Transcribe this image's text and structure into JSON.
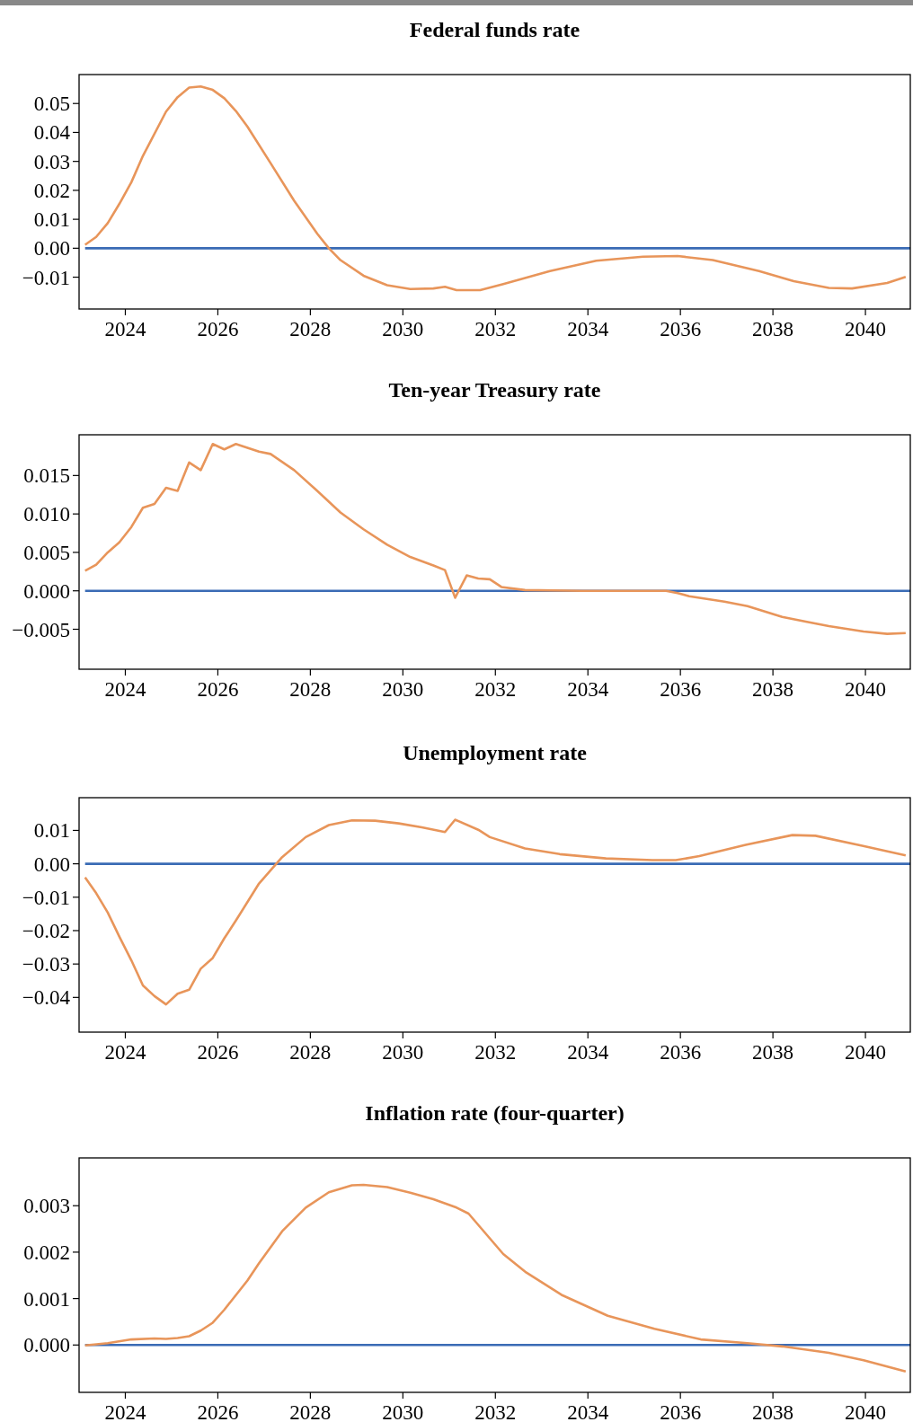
{
  "chart_data": [
    {
      "type": "line",
      "title": "Federal funds rate",
      "xlim": [
        2023,
        2040.97
      ],
      "xticks": [
        2024,
        2026,
        2028,
        2030,
        2032,
        2034,
        2036,
        2038,
        2040
      ],
      "ylim": [
        -0.021,
        0.06
      ],
      "yticks": [
        {
          "value": -0.01,
          "label": "−0.01"
        },
        {
          "value": 0,
          "label": "0.00"
        },
        {
          "value": 0.01,
          "label": "0.01"
        },
        {
          "value": 0.02,
          "label": "0.02"
        },
        {
          "value": 0.03,
          "label": "0.03"
        },
        {
          "value": 0.04,
          "label": "0.04"
        },
        {
          "value": 0.05,
          "label": "0.05"
        }
      ],
      "series": [
        {
          "color": "#3a6bb5",
          "x": [
            2023.13,
            2040.97
          ],
          "values": [
            0,
            0
          ]
        },
        {
          "color": "#e8955a",
          "x": [
            2023.13,
            2023.37,
            2023.62,
            2023.87,
            2024.13,
            2024.38,
            2024.88,
            2025.13,
            2025.38,
            2025.63,
            2025.89,
            2026.14,
            2026.39,
            2026.64,
            2027.14,
            2027.65,
            2028.15,
            2028.4,
            2028.65,
            2029.15,
            2029.66,
            2030.16,
            2030.66,
            2030.91,
            2031.16,
            2031.67,
            2032.17,
            2033.18,
            2034.18,
            2035.19,
            2035.94,
            2036.7,
            2037.7,
            2038.45,
            2039.21,
            2039.71,
            2040.47,
            2040.87
          ],
          "values": [
            0.0012,
            0.0039,
            0.0087,
            0.0153,
            0.0228,
            0.0319,
            0.0472,
            0.0522,
            0.0555,
            0.0559,
            0.0547,
            0.0518,
            0.0474,
            0.042,
            0.0294,
            0.0164,
            0.005,
            0,
            -0.0041,
            -0.0095,
            -0.0128,
            -0.0141,
            -0.0139,
            -0.0133,
            -0.0145,
            -0.0145,
            -0.0124,
            -0.0079,
            -0.0043,
            -0.0029,
            -0.0027,
            -0.0041,
            -0.0079,
            -0.0114,
            -0.0137,
            -0.0139,
            -0.012,
            -0.0099
          ]
        }
      ]
    },
    {
      "type": "line",
      "title": "Ten-year Treasury rate",
      "xlim": [
        2023,
        2040.97
      ],
      "xticks": [
        2024,
        2026,
        2028,
        2030,
        2032,
        2034,
        2036,
        2038,
        2040
      ],
      "ylim": [
        -0.0102,
        0.0203
      ],
      "yticks": [
        {
          "value": -0.005,
          "label": "−0.005"
        },
        {
          "value": 0,
          "label": "0.000"
        },
        {
          "value": 0.005,
          "label": "0.005"
        },
        {
          "value": 0.01,
          "label": "0.010"
        },
        {
          "value": 0.015,
          "label": "0.015"
        }
      ],
      "series": [
        {
          "color": "#3a6bb5",
          "x": [
            2023.13,
            2040.97
          ],
          "values": [
            0,
            0
          ]
        },
        {
          "color": "#e8955a",
          "x": [
            2023.13,
            2023.37,
            2023.62,
            2023.87,
            2024.13,
            2024.38,
            2024.63,
            2024.88,
            2025.13,
            2025.38,
            2025.63,
            2025.89,
            2026.14,
            2026.39,
            2026.89,
            2027.14,
            2027.65,
            2028.15,
            2028.65,
            2029.15,
            2029.66,
            2030.16,
            2030.66,
            2030.91,
            2031.13,
            2031.38,
            2031.63,
            2031.88,
            2032.13,
            2032.64,
            2033.87,
            2035.69,
            2035.94,
            2036.19,
            2036.95,
            2037.45,
            2038.2,
            2038.71,
            2039.21,
            2039.96,
            2040.47,
            2040.87
          ],
          "values": [
            0.0026,
            0.0034,
            0.005,
            0.0063,
            0.0083,
            0.0108,
            0.0113,
            0.0134,
            0.013,
            0.0167,
            0.0157,
            0.0191,
            0.0184,
            0.0191,
            0.0181,
            0.0178,
            0.0157,
            0.013,
            0.0102,
            0.008,
            0.006,
            0.0044,
            0.0033,
            0.0027,
            -0.0009,
            0.002,
            0.0016,
            0.0015,
            0.0005,
            0.0001,
            0,
            0,
            -0.0003,
            -0.0007,
            -0.0014,
            -0.002,
            -0.0034,
            -0.004,
            -0.0046,
            -0.0053,
            -0.0056,
            -0.0055
          ]
        }
      ]
    },
    {
      "type": "line",
      "title": "Unemployment rate",
      "xlim": [
        2023,
        2040.97
      ],
      "xticks": [
        2024,
        2026,
        2028,
        2030,
        2032,
        2034,
        2036,
        2038,
        2040
      ],
      "ylim": [
        -0.0504,
        0.0198
      ],
      "yticks": [
        {
          "value": -0.04,
          "label": "−0.04"
        },
        {
          "value": -0.03,
          "label": "−0.03"
        },
        {
          "value": -0.02,
          "label": "−0.02"
        },
        {
          "value": -0.01,
          "label": "−0.01"
        },
        {
          "value": 0,
          "label": "0.00"
        },
        {
          "value": 0.01,
          "label": "0.01"
        }
      ],
      "series": [
        {
          "color": "#3a6bb5",
          "x": [
            2023.13,
            2040.97
          ],
          "values": [
            0,
            0
          ]
        },
        {
          "color": "#e8955a",
          "x": [
            2023.13,
            2023.37,
            2023.62,
            2023.87,
            2024.13,
            2024.38,
            2024.63,
            2024.88,
            2025.13,
            2025.38,
            2025.63,
            2025.89,
            2026.14,
            2026.39,
            2026.89,
            2027.39,
            2027.9,
            2028.4,
            2028.9,
            2029.4,
            2029.91,
            2030.41,
            2030.91,
            2031.13,
            2031.63,
            2031.88,
            2032.64,
            2033.39,
            2034.39,
            2035.4,
            2035.9,
            2036.41,
            2037.41,
            2038.42,
            2038.92,
            2039.93,
            2040.87
          ],
          "values": [
            -0.0041,
            -0.0088,
            -0.0146,
            -0.0218,
            -0.0289,
            -0.0364,
            -0.0396,
            -0.0421,
            -0.0389,
            -0.0377,
            -0.0314,
            -0.0282,
            -0.0223,
            -0.017,
            -0.0059,
            0.002,
            0.008,
            0.0116,
            0.013,
            0.0129,
            0.0121,
            0.0109,
            0.0095,
            0.0132,
            0.0102,
            0.008,
            0.0046,
            0.0029,
            0.0016,
            0.0011,
            0.0011,
            0.0023,
            0.0057,
            0.0086,
            0.0084,
            0.0054,
            0.0025
          ]
        }
      ]
    },
    {
      "type": "line",
      "title": "Inflation rate (four-quarter)",
      "xlim": [
        2023,
        2040.97
      ],
      "xticks": [
        2024,
        2026,
        2028,
        2030,
        2032,
        2034,
        2036,
        2038,
        2040
      ],
      "ylim": [
        -0.00102,
        0.00403
      ],
      "yticks": [
        {
          "value": 0,
          "label": "0.000"
        },
        {
          "value": 0.001,
          "label": "0.001"
        },
        {
          "value": 0.002,
          "label": "0.002"
        },
        {
          "value": 0.003,
          "label": "0.003"
        }
      ],
      "series": [
        {
          "color": "#3a6bb5",
          "x": [
            2023.13,
            2040.97
          ],
          "values": [
            0,
            0
          ]
        },
        {
          "color": "#e8955a",
          "x": [
            2023.13,
            2023.62,
            2024.13,
            2024.63,
            2024.88,
            2025.13,
            2025.38,
            2025.63,
            2025.89,
            2026.14,
            2026.64,
            2026.89,
            2027.39,
            2027.9,
            2028.4,
            2028.9,
            2029.15,
            2029.66,
            2030.16,
            2030.66,
            2031.16,
            2031.42,
            2032.17,
            2032.67,
            2033.43,
            2034.43,
            2035.44,
            2036.44,
            2037.45,
            2038.2,
            2039.21,
            2039.96,
            2040.87
          ],
          "values": [
            -1e-05,
            4e-05,
            0.00012,
            0.00014,
            0.00013,
            0.00015,
            0.00019,
            0.00031,
            0.00048,
            0.00076,
            0.00139,
            0.00176,
            0.00245,
            0.00296,
            0.00329,
            0.00344,
            0.00345,
            0.0034,
            0.00328,
            0.00314,
            0.00296,
            0.00283,
            0.00196,
            0.00156,
            0.00108,
            0.00063,
            0.00035,
            0.00012,
            4e-05,
            -3e-05,
            -0.00017,
            -0.00033,
            -0.00057
          ]
        }
      ]
    }
  ]
}
